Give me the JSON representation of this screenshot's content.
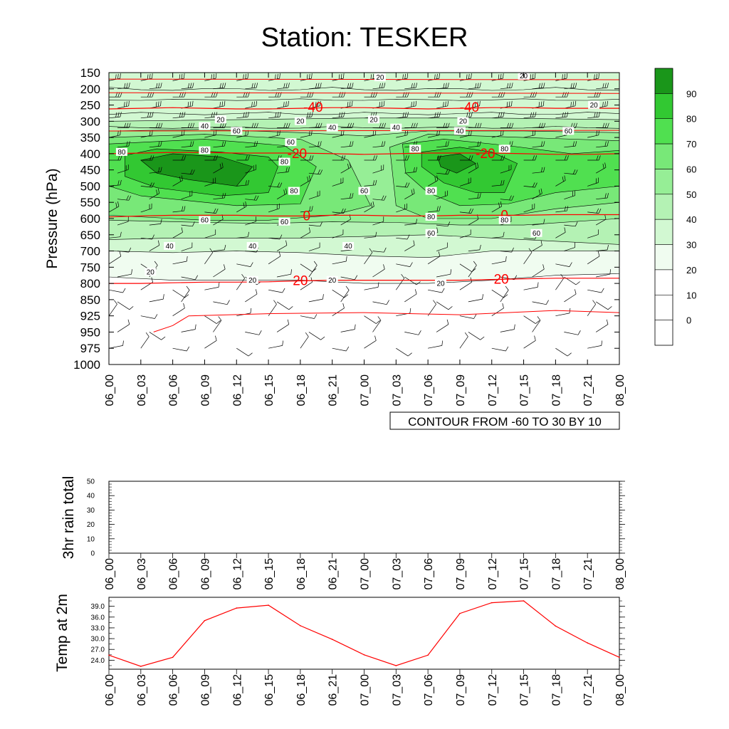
{
  "title": "Station: TESKER",
  "time_labels": [
    "06_00",
    "06_03",
    "06_06",
    "06_09",
    "06_12",
    "06_15",
    "06_18",
    "06_21",
    "07_00",
    "07_03",
    "07_06",
    "07_09",
    "07_12",
    "07_15",
    "07_18",
    "07_21",
    "08_00"
  ],
  "colors": {
    "bands": [
      "#ffffff",
      "#ffffff",
      "#f0fcf0",
      "#d2f8d2",
      "#b4f2b4",
      "#96ee96",
      "#78e878",
      "#50e050",
      "#32c832",
      "#1a961a"
    ],
    "red": "#ff0000",
    "line": "#000000"
  },
  "chart_data": [
    {
      "type": "heatmap",
      "panel": "cross-section",
      "ylabel": "Pressure (hPa)",
      "xlabel": "",
      "y_ticks": [
        150,
        200,
        250,
        300,
        350,
        400,
        450,
        500,
        550,
        600,
        650,
        700,
        750,
        800,
        850,
        925,
        950,
        975,
        1000
      ],
      "ylim": [
        1000,
        150
      ],
      "x_categories": [
        "06_00",
        "06_03",
        "06_06",
        "06_09",
        "06_12",
        "06_15",
        "06_18",
        "06_21",
        "07_00",
        "07_03",
        "07_06",
        "07_09",
        "07_12",
        "07_15",
        "07_18",
        "07_21",
        "08_00"
      ],
      "contour_info": "CONTOUR FROM -60 TO 30 BY 10",
      "colorbar_ticks": [
        "90",
        "80",
        "70",
        "60",
        "50",
        "40",
        "30",
        "20",
        "10",
        "0"
      ],
      "humidity_contour_labels": [
        "20",
        "20",
        "20",
        "20",
        "20",
        "20",
        "20",
        "20",
        "20",
        "20",
        "20",
        "40",
        "40",
        "40",
        "40",
        "40",
        "40",
        "40",
        "60",
        "60",
        "60",
        "60",
        "60",
        "60",
        "60",
        "60",
        "80",
        "80",
        "80",
        "80",
        "80",
        "80",
        "80",
        "80",
        "80"
      ],
      "temperature_contour_labels": [
        "-40",
        "-40",
        "-20",
        "-20",
        "0",
        "0",
        "20",
        "20"
      ],
      "temperature_contours": [
        {
          "label": "-40",
          "p": [
            262,
            260,
            258,
            260,
            262,
            262,
            260,
            258,
            258,
            260,
            262,
            260,
            258,
            258,
            260,
            260,
            260
          ]
        },
        {
          "label": "-20",
          "p": [
            400,
            398,
            396,
            396,
            398,
            398,
            398,
            400,
            402,
            400,
            398,
            398,
            398,
            400,
            402,
            402,
            400
          ]
        },
        {
          "label": "0",
          "p": [
            595,
            592,
            590,
            590,
            590,
            592,
            592,
            590,
            590,
            592,
            592,
            590,
            590,
            590,
            588,
            588,
            588
          ]
        },
        {
          "label": "20",
          "p": [
            800,
            800,
            798,
            796,
            796,
            795,
            792,
            790,
            790,
            790,
            790,
            790,
            788,
            786,
            784,
            784,
            784
          ]
        }
      ]
    },
    {
      "type": "bar",
      "panel": "rain",
      "ylabel": "3hr rain total",
      "xlabel": "",
      "categories": [
        "06_00",
        "06_03",
        "06_06",
        "06_09",
        "06_12",
        "06_15",
        "06_18",
        "06_21",
        "07_00",
        "07_03",
        "07_06",
        "07_09",
        "07_12",
        "07_15",
        "07_18",
        "07_21",
        "08_00"
      ],
      "values": [
        0,
        0,
        0,
        0,
        0,
        0,
        0,
        0,
        0,
        0,
        0,
        0,
        0,
        0,
        0,
        0,
        0
      ],
      "y_ticks": [
        "0",
        "10",
        "20",
        "30",
        "40",
        "50"
      ],
      "ylim": [
        0,
        50
      ]
    },
    {
      "type": "line",
      "panel": "temperature",
      "ylabel": "Temp at 2m",
      "xlabel": "",
      "categories": [
        "06_00",
        "06_03",
        "06_06",
        "06_09",
        "06_12",
        "06_15",
        "06_18",
        "06_21",
        "07_00",
        "07_03",
        "07_06",
        "07_09",
        "07_12",
        "07_15",
        "07_18",
        "07_21",
        "08_00"
      ],
      "series": [
        {
          "values": [
            25.4,
            22.3,
            24.8,
            35.0,
            38.5,
            39.3,
            33.6,
            29.8,
            25.5,
            22.5,
            25.4,
            37.0,
            40.0,
            40.5,
            33.5,
            28.8,
            24.8
          ]
        }
      ],
      "y_ticks": [
        "24.0",
        "27.0",
        "30.0",
        "33.0",
        "36.0",
        "39.0"
      ],
      "ylim": [
        21.5,
        41.5
      ]
    }
  ]
}
